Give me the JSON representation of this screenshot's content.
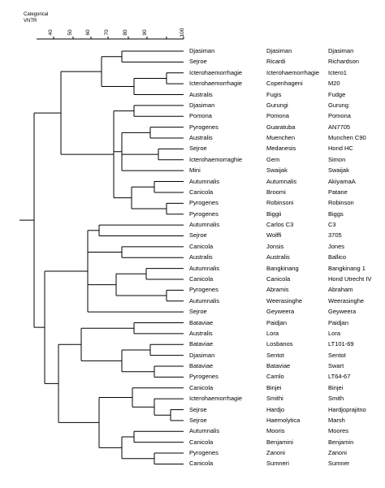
{
  "header": {
    "line1": "Categorical",
    "line2": "VNTR"
  },
  "scale": {
    "ticks": [
      "40",
      "50",
      "60",
      "70",
      "80",
      "90",
      "100"
    ]
  },
  "rows": [
    {
      "serogroup": "Djasiman",
      "serovar": "Djasiman",
      "strain": "Djasiman"
    },
    {
      "serogroup": "Sejroe",
      "serovar": "Ricardi",
      "strain": "Richardson"
    },
    {
      "serogroup": "Icterohaemorrhagie",
      "serovar": "Icterohaemorrhagie",
      "strain": "Ictero1"
    },
    {
      "serogroup": "Icterohaemorrhagie",
      "serovar": "Copenhageni",
      "strain": "M20"
    },
    {
      "serogroup": "Australis",
      "serovar": "Fugis",
      "strain": "Fudge"
    },
    {
      "serogroup": "Djasiman",
      "serovar": "Gurungi",
      "strain": "Gurung"
    },
    {
      "serogroup": "Pomona",
      "serovar": "Pomona",
      "strain": "Pomona"
    },
    {
      "serogroup": "Pyrogenes",
      "serovar": "Guaratuba",
      "strain": "AN7705"
    },
    {
      "serogroup": "Australis",
      "serovar": "Muenchen",
      "strain": "Munchen C90"
    },
    {
      "serogroup": "Sejroe",
      "serovar": "Medanesis",
      "strain": "Hond HC"
    },
    {
      "serogroup": "Icterohaemorraghie",
      "serovar": "Gem",
      "strain": "Simon"
    },
    {
      "serogroup": "Mini",
      "serovar": "Swaijak",
      "strain": "Swaijak"
    },
    {
      "serogroup": "Autumnalis",
      "serovar": "Autumnalis",
      "strain": "AkiyamaA"
    },
    {
      "serogroup": "Canicola",
      "serovar": "Broomi",
      "strain": "Patane"
    },
    {
      "serogroup": "Pyrogenes",
      "serovar": "Robinsoni",
      "strain": "Robinson"
    },
    {
      "serogroup": "Pyrogenes",
      "serovar": "Biggii",
      "strain": "Biggs"
    },
    {
      "serogroup": "Autumnalis",
      "serovar": "Carlos C3",
      "strain": "C3"
    },
    {
      "serogroup": "Sejroe",
      "serovar": "Wolffi",
      "strain": "3705"
    },
    {
      "serogroup": "Canicola",
      "serovar": "Jonsis",
      "strain": "Jones"
    },
    {
      "serogroup": "Australis",
      "serovar": "Australis",
      "strain": "Ballico"
    },
    {
      "serogroup": "Autumnalis",
      "serovar": "Bangkinang",
      "strain": "Bangkinang 1"
    },
    {
      "serogroup": "Canicola",
      "serovar": "Canicola",
      "strain": "Hond Utrecht IV"
    },
    {
      "serogroup": "Pyrogenes",
      "serovar": "Abramis",
      "strain": "Abraham"
    },
    {
      "serogroup": "Autumnalis",
      "serovar": "Weerasinghe",
      "strain": "Weerasinghe"
    },
    {
      "serogroup": "Sejroe",
      "serovar": "Geyweera",
      "strain": "Geyweera"
    },
    {
      "serogroup": "Bataviae",
      "serovar": "Paidjan",
      "strain": "Paidjan"
    },
    {
      "serogroup": "Australis",
      "serovar": "Lora",
      "strain": "Lora"
    },
    {
      "serogroup": "Bataviae",
      "serovar": "Losbanos",
      "strain": "LT101-69"
    },
    {
      "serogroup": "Djasiman",
      "serovar": "Sentot",
      "strain": "Sentot"
    },
    {
      "serogroup": "Bataviae",
      "serovar": "Bataviae",
      "strain": "Swart"
    },
    {
      "serogroup": "Pyrogenes",
      "serovar": "Camlo",
      "strain": "LT64-67"
    },
    {
      "serogroup": "Canicola",
      "serovar": "Binjei",
      "strain": "Binjei"
    },
    {
      "serogroup": "Icterohaemorrhagie",
      "serovar": "Smithi",
      "strain": "Smith"
    },
    {
      "serogroup": "Sejroe",
      "serovar": "Hardjo",
      "strain": "Hardjoprajitno"
    },
    {
      "serogroup": "Sejroe",
      "serovar": "Haemolytica",
      "strain": "Marsh"
    },
    {
      "serogroup": "Autumnalis",
      "serovar": "Mooris",
      "strain": "Moores"
    },
    {
      "serogroup": "Canicola",
      "serovar": "Benjamini",
      "strain": "Benjamin"
    },
    {
      "serogroup": "Pyrogenes",
      "serovar": "Zanoni",
      "strain": "Zanoni"
    },
    {
      "serogroup": "Canicola",
      "serovar": "Sumneri",
      "strain": "Sumner"
    }
  ]
}
